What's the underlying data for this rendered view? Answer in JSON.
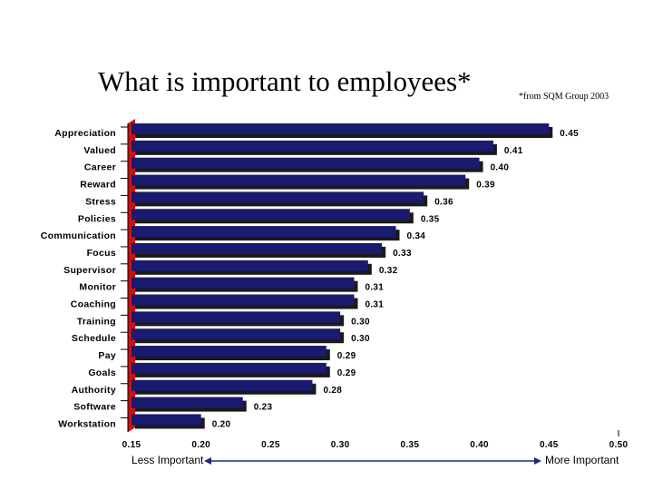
{
  "title": "What is important to employees*",
  "source_note": "*from SQM Group 2003",
  "axis_labels": {
    "left": "Less Important",
    "right": "More Important"
  },
  "colors": {
    "bar": "#1a1a6e",
    "shadow": "#1a1a1a",
    "axis_wall": "#cc1111"
  },
  "chart_data": {
    "type": "bar",
    "orientation": "horizontal",
    "categories": [
      "Appreciation",
      "Valued",
      "Career",
      "Reward",
      "Stress",
      "Policies",
      "Communication",
      "Focus",
      "Supervisor",
      "Monitor",
      "Coaching",
      "Training",
      "Schedule",
      "Pay",
      "Goals",
      "Authority",
      "Software",
      "Workstation"
    ],
    "values": [
      0.45,
      0.41,
      0.4,
      0.39,
      0.36,
      0.35,
      0.34,
      0.33,
      0.32,
      0.31,
      0.31,
      0.3,
      0.3,
      0.29,
      0.29,
      0.28,
      0.23,
      0.2
    ],
    "value_labels": [
      "0.45",
      "0.41",
      "0.40",
      "0.39",
      "0.36",
      "0.35",
      "0.34",
      "0.33",
      "0.32",
      "0.31",
      "0.31",
      "0.30",
      "0.30",
      "0.29",
      "0.29",
      "0.28",
      "0.23",
      "0.20"
    ],
    "xlim": [
      0.15,
      0.5
    ],
    "x_ticks": [
      0.15,
      0.2,
      0.25,
      0.3,
      0.35,
      0.4,
      0.45,
      0.5
    ],
    "x_tick_labels": [
      "0.15",
      "0.20",
      "0.25",
      "0.30",
      "0.35",
      "0.40",
      "0.45",
      "0.50"
    ],
    "grid": false
  }
}
